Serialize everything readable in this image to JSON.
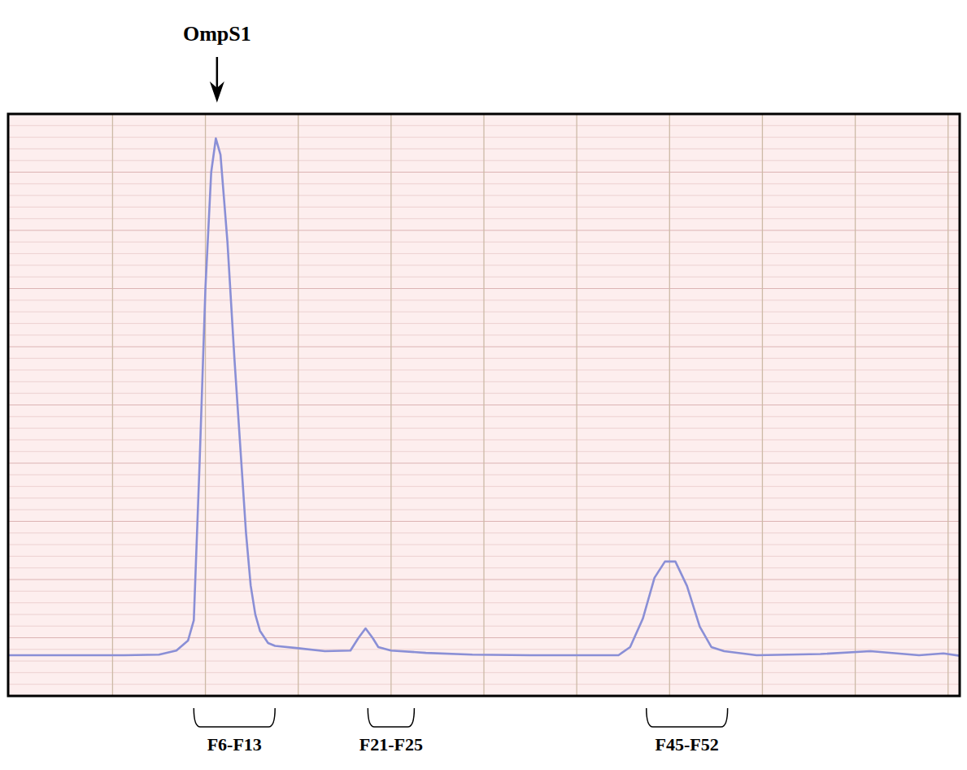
{
  "chart_data": {
    "type": "line",
    "x": [
      -10,
      0,
      3,
      4.5,
      5.5,
      6,
      6.5,
      7,
      7.5,
      7.9,
      8.3,
      8.9,
      9.5,
      10,
      10.5,
      10.9,
      11.3,
      11.7,
      12.4,
      13,
      15,
      17.3,
      19.5,
      20.2,
      20.8,
      21.4,
      21.9,
      23,
      26,
      30,
      35,
      40,
      42.6,
      43.6,
      44.7,
      45.7,
      46.6,
      47.5,
      48.5,
      49.6,
      50.6,
      51.7,
      54.5,
      60,
      64.3,
      68.5,
      70.6,
      72
    ],
    "values": [
      7.0,
      7.0,
      7.1,
      7.8,
      9.5,
      13,
      40,
      70,
      90,
      95.8,
      93,
      78,
      58,
      43,
      28,
      19,
      14,
      11.2,
      9.1,
      8.6,
      8.2,
      7.7,
      7.8,
      10,
      11.6,
      10,
      8.4,
      7.8,
      7.4,
      7.1,
      7.0,
      7.0,
      7.0,
      8.4,
      13.3,
      20.3,
      23.1,
      23.1,
      18.9,
      11.9,
      8.4,
      7.7,
      7.0,
      7.2,
      7.7,
      7.0,
      7.3,
      6.9
    ],
    "color": "#8a8fd6",
    "xlim": [
      -10,
      72
    ],
    "ylim": [
      0,
      100
    ],
    "xticks": [
      -1,
      7,
      15,
      23,
      31,
      39,
      47,
      55,
      63,
      71
    ],
    "yticks": [
      0,
      10,
      20,
      30,
      40,
      50,
      60,
      70,
      80,
      90,
      100
    ],
    "grid": true,
    "tick_labels": false,
    "annotations": [
      {
        "text": "OmpS1",
        "x": 8
      }
    ],
    "fractions": [
      {
        "label": "F6-F13",
        "start": 6,
        "end": 13
      },
      {
        "label": "F21-F25",
        "start": 21,
        "end": 25
      },
      {
        "label": "F45-F52",
        "start": 45,
        "end": 52
      }
    ]
  }
}
